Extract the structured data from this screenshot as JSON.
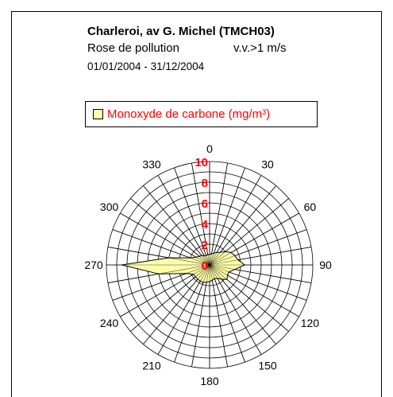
{
  "chart_data": {
    "type": "polar-area",
    "title": "Charleroi, av G. Michel (TMCH03)",
    "subtitle": "Rose de pollution",
    "wind_condition": "v.v.>1 m/s",
    "period": "01/01/2004 - 31/12/2004",
    "legend": {
      "label": "Monoxyde de carbone (mg/m³)",
      "swatch_color": "#ffffaa"
    },
    "radial_axis": {
      "min": 0,
      "max": 10,
      "ticks": [
        "0",
        "2",
        "4",
        "6",
        "8",
        "10"
      ],
      "tick_color": "#ff0000"
    },
    "angle_labels": [
      "0",
      "30",
      "60",
      "90",
      "120",
      "150",
      "180",
      "210",
      "240",
      "270",
      "300",
      "330"
    ],
    "fill_color": "#ffffaa",
    "series": [
      {
        "name": "Monoxyde de carbone (mg/m³)",
        "directions": [
          0,
          10,
          20,
          30,
          40,
          50,
          60,
          70,
          80,
          90,
          100,
          110,
          120,
          130,
          140,
          150,
          160,
          170,
          180,
          190,
          200,
          210,
          220,
          230,
          240,
          250,
          260,
          270,
          280,
          290,
          300,
          310,
          320,
          330,
          340,
          350
        ],
        "values": [
          1.0,
          1.1,
          1.2,
          1.4,
          1.6,
          2.0,
          2.4,
          2.6,
          2.8,
          3.4,
          2.5,
          2.0,
          2.0,
          2.2,
          1.8,
          1.5,
          1.4,
          1.5,
          1.6,
          1.7,
          1.8,
          1.8,
          1.8,
          1.8,
          1.8,
          2.4,
          5.0,
          8.5,
          4.0,
          2.0,
          1.5,
          1.3,
          1.2,
          1.0,
          1.0,
          1.0
        ]
      }
    ]
  }
}
